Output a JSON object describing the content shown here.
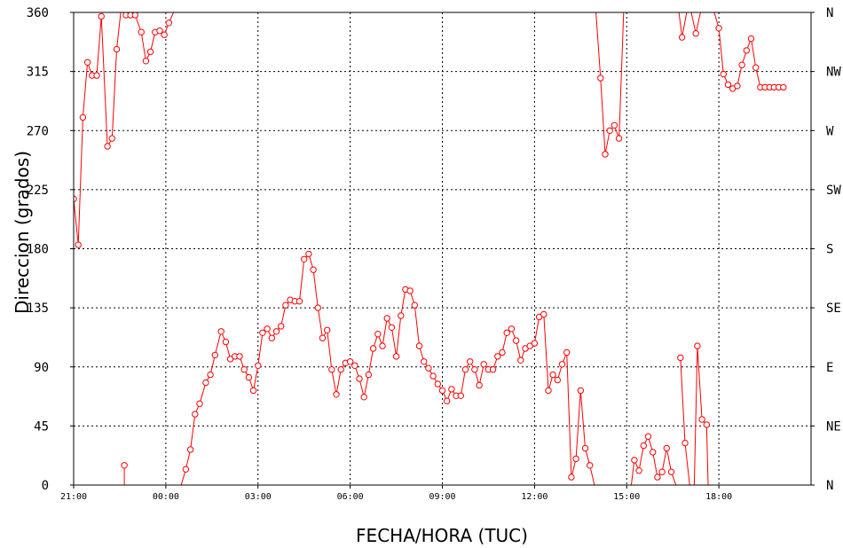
{
  "chart_data": {
    "type": "line",
    "title": "",
    "xlabel": "FECHA/HORA (TUC)",
    "ylabel": "Direccion (grados)",
    "ylim": [
      0,
      360
    ],
    "xlim": [
      21,
      45
    ],
    "grid": true,
    "line_color": "#ff0000",
    "x_tick_values": [
      21,
      24,
      27,
      30,
      33,
      36,
      39,
      42
    ],
    "x_tick_labels": [
      "21:00",
      "00:00",
      "03:00",
      "06:00",
      "09:00",
      "12:00",
      "15:00",
      "18:00"
    ],
    "y_tick_values": [
      0,
      45,
      90,
      135,
      180,
      225,
      270,
      315,
      360
    ],
    "y_tick_labels": [
      "0",
      "45",
      "90",
      "135",
      "180",
      "225",
      "270",
      "315",
      "360"
    ],
    "compass_labels": [
      "N",
      "NE",
      "E",
      "SE",
      "S",
      "SW",
      "W",
      "NW",
      "N"
    ],
    "series": [
      {
        "segments": [
          [
            [
              21.0,
              218
            ],
            [
              21.15,
              183
            ],
            [
              21.3,
              280
            ],
            [
              21.45,
              322
            ],
            [
              21.6,
              312
            ],
            [
              21.75,
              312
            ],
            [
              21.9,
              357
            ],
            [
              22.1,
              258
            ],
            [
              22.25,
              264
            ],
            [
              22.4,
              332
            ],
            [
              22.55,
              364
            ],
            [
              22.7,
              358
            ],
            [
              22.85,
              358
            ],
            [
              23.0,
              358
            ],
            [
              23.2,
              345
            ],
            [
              23.35,
              323
            ],
            [
              23.5,
              330
            ],
            [
              23.65,
              345
            ],
            [
              23.8,
              346
            ],
            [
              23.95,
              343
            ],
            [
              24.1,
              352
            ],
            [
              24.25,
              360
            ]
          ],
          [
            [
              22.65,
              15
            ],
            [
              22.65,
              0
            ]
          ],
          [
            [
              24.5,
              0
            ],
            [
              24.65,
              12
            ],
            [
              24.8,
              27
            ],
            [
              24.95,
              54
            ],
            [
              25.1,
              62
            ],
            [
              25.3,
              78
            ],
            [
              25.45,
              84
            ],
            [
              25.6,
              99
            ],
            [
              25.8,
              117
            ],
            [
              25.95,
              109
            ],
            [
              26.1,
              96
            ],
            [
              26.25,
              98
            ],
            [
              26.4,
              98
            ],
            [
              26.55,
              88
            ],
            [
              26.7,
              82
            ],
            [
              26.85,
              72
            ],
            [
              27.0,
              91
            ],
            [
              27.15,
              116
            ],
            [
              27.3,
              119
            ],
            [
              27.45,
              112
            ],
            [
              27.6,
              117
            ],
            [
              27.75,
              121
            ],
            [
              27.9,
              137
            ],
            [
              28.05,
              141
            ],
            [
              28.2,
              140
            ],
            [
              28.35,
              140
            ],
            [
              28.5,
              172
            ],
            [
              28.65,
              176
            ],
            [
              28.8,
              164
            ],
            [
              28.95,
              135
            ],
            [
              29.1,
              112
            ],
            [
              29.25,
              118
            ],
            [
              29.4,
              88
            ],
            [
              29.55,
              69
            ],
            [
              29.7,
              88
            ],
            [
              29.85,
              93
            ],
            [
              30.0,
              94
            ],
            [
              30.15,
              91
            ],
            [
              30.3,
              81
            ],
            [
              30.45,
              67
            ],
            [
              30.6,
              84
            ],
            [
              30.75,
              104
            ],
            [
              30.9,
              115
            ],
            [
              31.05,
              106
            ],
            [
              31.2,
              127
            ],
            [
              31.35,
              120
            ],
            [
              31.5,
              98
            ],
            [
              31.65,
              129
            ],
            [
              31.8,
              149
            ],
            [
              31.95,
              148
            ],
            [
              32.1,
              137
            ],
            [
              32.25,
              106
            ],
            [
              32.4,
              94
            ],
            [
              32.55,
              89
            ],
            [
              32.7,
              83
            ],
            [
              32.85,
              77
            ],
            [
              33.0,
              72
            ],
            [
              33.15,
              64
            ],
            [
              33.3,
              73
            ],
            [
              33.45,
              68
            ],
            [
              33.6,
              68
            ],
            [
              33.75,
              88
            ],
            [
              33.9,
              94
            ],
            [
              34.05,
              88
            ],
            [
              34.2,
              76
            ],
            [
              34.35,
              92
            ],
            [
              34.5,
              88
            ],
            [
              34.65,
              88
            ],
            [
              34.8,
              98
            ],
            [
              34.95,
              101
            ],
            [
              35.1,
              116
            ],
            [
              35.25,
              119
            ],
            [
              35.4,
              110
            ],
            [
              35.55,
              95
            ],
            [
              35.7,
              104
            ],
            [
              35.85,
              106
            ],
            [
              36.0,
              108
            ],
            [
              36.15,
              128
            ],
            [
              36.3,
              130
            ],
            [
              36.45,
              72
            ],
            [
              36.6,
              84
            ],
            [
              36.75,
              80
            ],
            [
              36.9,
              92
            ],
            [
              37.05,
              101
            ],
            [
              37.2,
              6
            ],
            [
              37.35,
              20
            ],
            [
              37.5,
              72
            ],
            [
              37.65,
              28
            ],
            [
              37.8,
              15
            ],
            [
              37.95,
              0
            ]
          ],
          [
            [
              38.0,
              360
            ],
            [
              38.15,
              310
            ],
            [
              38.3,
              252
            ],
            [
              38.45,
              270
            ],
            [
              38.6,
              274
            ],
            [
              38.75,
              264
            ],
            [
              38.9,
              360
            ]
          ],
          [
            [
              39.15,
              0
            ],
            [
              39.25,
              19
            ],
            [
              39.4,
              11
            ],
            [
              39.55,
              30
            ],
            [
              39.7,
              37
            ],
            [
              39.85,
              25
            ],
            [
              40.0,
              6
            ],
            [
              40.15,
              10
            ],
            [
              40.3,
              28
            ],
            [
              40.45,
              10
            ],
            [
              40.6,
              0
            ]
          ],
          [
            [
              40.7,
              360
            ],
            [
              40.8,
              341
            ],
            [
              40.95,
              360
            ]
          ],
          [
            [
              40.75,
              97
            ],
            [
              40.9,
              32
            ],
            [
              41.05,
              0
            ]
          ],
          [
            [
              41.1,
              360
            ],
            [
              41.25,
              344
            ],
            [
              41.4,
              360
            ]
          ],
          [
            [
              41.2,
              0
            ],
            [
              41.3,
              106
            ],
            [
              41.45,
              50
            ],
            [
              41.6,
              46
            ],
            [
              41.65,
              0
            ]
          ],
          [
            [
              41.85,
              360
            ],
            [
              42.0,
              348
            ],
            [
              42.15,
              313
            ],
            [
              42.3,
              305
            ],
            [
              42.45,
              302
            ],
            [
              42.6,
              304
            ],
            [
              42.75,
              320
            ],
            [
              42.9,
              331
            ],
            [
              43.05,
              340
            ],
            [
              43.2,
              318
            ],
            [
              43.35,
              303
            ],
            [
              43.5,
              303
            ],
            [
              43.65,
              303
            ],
            [
              43.8,
              303
            ],
            [
              43.95,
              303
            ],
            [
              44.1,
              303
            ]
          ]
        ]
      }
    ]
  }
}
